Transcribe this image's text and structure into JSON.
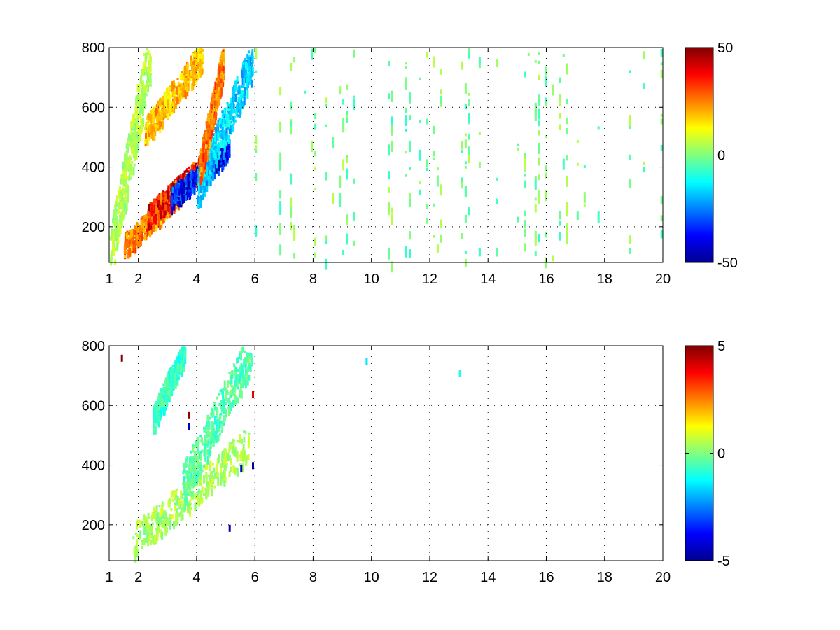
{
  "chart_data": [
    {
      "type": "heatmap",
      "x_ticks": [
        1,
        2,
        4,
        6,
        8,
        10,
        12,
        14,
        16,
        18,
        20
      ],
      "y_ticks": [
        200,
        400,
        600,
        800
      ],
      "xlim": [
        1,
        20
      ],
      "ylim": [
        80,
        800
      ],
      "grid": true,
      "colorbar": {
        "ticks": [
          -50,
          0,
          50
        ],
        "range": [
          -50,
          50
        ],
        "colormap": "jet",
        "placement": "right"
      },
      "clusters": [
        {
          "x": [
            1.5,
            3.5
          ],
          "y": [
            140,
            330
          ],
          "value": 28
        },
        {
          "x": [
            2.3,
            4.3
          ],
          "y": [
            240,
            420
          ],
          "value": 42
        },
        {
          "x": [
            3.1,
            5.1
          ],
          "y": [
            300,
            460
          ],
          "value": -42
        },
        {
          "x": [
            4.0,
            5.9
          ],
          "y": [
            330,
            760
          ],
          "value": -20
        },
        {
          "x": [
            4.1,
            4.9
          ],
          "y": [
            400,
            760
          ],
          "value": 30
        },
        {
          "x": [
            2.2,
            4.2
          ],
          "y": [
            520,
            780
          ],
          "value": 22
        },
        {
          "x": [
            1.0,
            2.4
          ],
          "y": [
            90,
            800
          ],
          "value": 6
        }
      ],
      "noise_x_range": [
        6,
        20
      ],
      "noise_values": [
        -8,
        6
      ]
    },
    {
      "type": "heatmap",
      "x_ticks": [
        1,
        2,
        4,
        6,
        8,
        10,
        12,
        14,
        16,
        18,
        20
      ],
      "y_ticks": [
        200,
        400,
        600,
        800
      ],
      "xlim": [
        1,
        20
      ],
      "ylim": [
        80,
        800
      ],
      "grid": true,
      "colorbar": {
        "ticks": [
          -5,
          0,
          5
        ],
        "range": [
          -5,
          5
        ],
        "colormap": "jet",
        "placement": "right"
      },
      "clusters": [
        {
          "x": [
            1.8,
            5.8
          ],
          "y": [
            150,
            480
          ],
          "value": 0.5
        },
        {
          "x": [
            3.5,
            5.9
          ],
          "y": [
            330,
            800
          ],
          "value": -0.5
        },
        {
          "x": [
            2.5,
            3.6
          ],
          "y": [
            560,
            800
          ],
          "value": -0.8
        }
      ],
      "outliers": [
        {
          "x": 3.7,
          "y": 580,
          "value": 4.8
        },
        {
          "x": 3.7,
          "y": 540,
          "value": -4.5
        },
        {
          "x": 5.9,
          "y": 410,
          "value": -4.8
        },
        {
          "x": 5.5,
          "y": 400,
          "value": -4.2
        },
        {
          "x": 5.1,
          "y": 200,
          "value": -4.6
        },
        {
          "x": 1.4,
          "y": 770,
          "value": 5.0
        },
        {
          "x": 5.9,
          "y": 650,
          "value": 4.0
        },
        {
          "x": 9.8,
          "y": 760,
          "value": -1.5
        },
        {
          "x": 13.0,
          "y": 720,
          "value": -1.0
        }
      ]
    }
  ]
}
